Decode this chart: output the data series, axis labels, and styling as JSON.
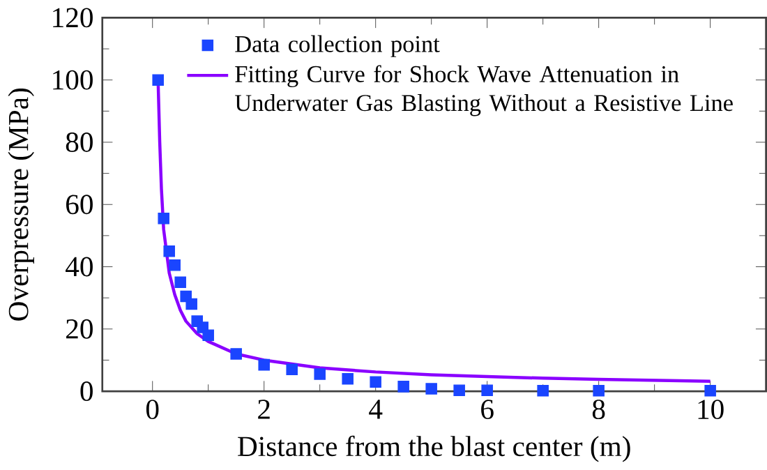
{
  "chart_data": {
    "type": "scatter",
    "xlabel": "Distance from the blast center (m)",
    "ylabel": "Overpressure (MPa)",
    "xlim": [
      -0.9,
      11
    ],
    "ylim": [
      0,
      120
    ],
    "xticks": [
      0,
      2,
      4,
      6,
      8,
      10
    ],
    "yticks": [
      0,
      20,
      40,
      60,
      80,
      100,
      120
    ],
    "grid": false,
    "legend": "top right",
    "series": [
      {
        "name": "Data collection point",
        "marker": "square",
        "color": "#1a45ff",
        "x": [
          0.1,
          0.2,
          0.3,
          0.4,
          0.5,
          0.6,
          0.7,
          0.8,
          0.9,
          1.0,
          1.5,
          2,
          2.5,
          3,
          3.5,
          4,
          4.5,
          5,
          5.5,
          6,
          7,
          8,
          10
        ],
        "values": [
          100,
          55.5,
          45,
          40.5,
          35,
          30.5,
          28,
          22.5,
          20.5,
          18,
          12,
          8.5,
          7,
          5.5,
          4,
          3,
          1.5,
          0.8,
          0.3,
          0.3,
          0.2,
          0.2,
          0.2
        ]
      },
      {
        "name": "Fitting Curve for Shock Wave Attenuation in Underwater Gas Blasting Without a Resistive Line",
        "type": "line",
        "marker": "none",
        "line_style": "solid",
        "color": "#8a00ff",
        "x": [
          0.1,
          0.13,
          0.16,
          0.2,
          0.3,
          0.4,
          0.5,
          0.6,
          0.8,
          1,
          1.5,
          2,
          3,
          4,
          5,
          6,
          7,
          8,
          10
        ],
        "values": [
          100,
          80,
          65,
          52,
          38,
          31,
          26,
          22.5,
          18.5,
          16,
          12,
          10,
          7.5,
          6.2,
          5.3,
          4.7,
          4.2,
          3.8,
          3.2
        ]
      }
    ]
  }
}
